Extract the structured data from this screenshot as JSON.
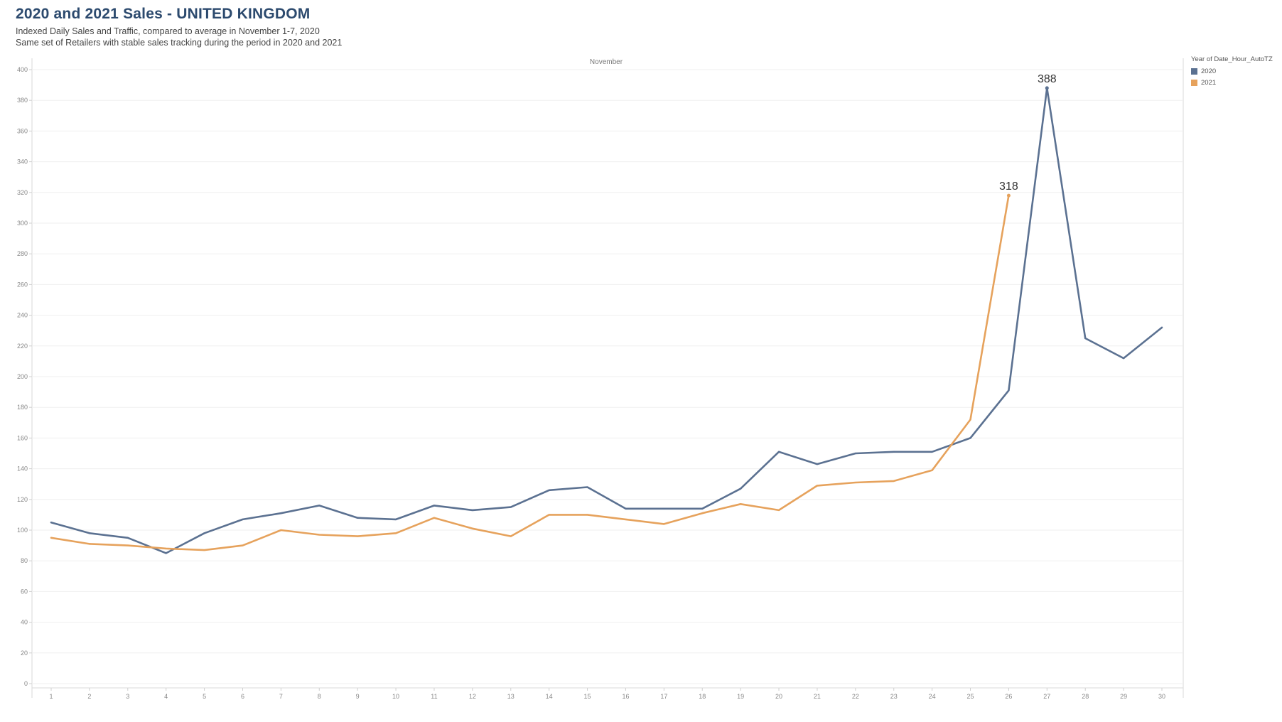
{
  "title": "2020 and 2021 Sales - UNITED KINGDOM",
  "subtitle_1": "Indexed Daily Sales and Traffic, compared to average in November 1-7, 2020",
  "subtitle_2": "Same set of Retailers with stable sales tracking during the period in 2020 and 2021",
  "legend": {
    "title": "Year of Date_Hour_AutoTZ",
    "items": [
      {
        "label": "2020",
        "color": "#5b7191"
      },
      {
        "label": "2021",
        "color": "#e6a25c"
      }
    ]
  },
  "chart_data": {
    "type": "line",
    "title": "2020 and 2021 Sales - UNITED KINGDOM",
    "column_header": "November",
    "xlabel": "",
    "ylabel": "",
    "x": [
      1,
      2,
      3,
      4,
      5,
      6,
      7,
      8,
      9,
      10,
      11,
      12,
      13,
      14,
      15,
      16,
      17,
      18,
      19,
      20,
      21,
      22,
      23,
      24,
      25,
      26,
      27,
      28,
      29,
      30
    ],
    "ylim": [
      0,
      400
    ],
    "yticks": [
      0,
      20,
      40,
      60,
      80,
      100,
      120,
      140,
      160,
      180,
      200,
      220,
      240,
      260,
      280,
      300,
      320,
      340,
      360,
      380,
      400
    ],
    "grid": true,
    "legend_position": "top-right",
    "series": [
      {
        "name": "2020",
        "color": "#5b7191",
        "values": [
          105,
          98,
          95,
          85,
          98,
          107,
          111,
          116,
          108,
          107,
          116,
          113,
          115,
          126,
          128,
          114,
          114,
          114,
          127,
          151,
          143,
          150,
          151,
          151,
          160,
          191,
          388,
          225,
          212,
          232
        ],
        "label_index": 26,
        "label": "388"
      },
      {
        "name": "2021",
        "color": "#e6a25c",
        "values": [
          95,
          91,
          90,
          88,
          87,
          90,
          100,
          97,
          96,
          98,
          108,
          101,
          96,
          110,
          110,
          107,
          104,
          111,
          117,
          113,
          129,
          131,
          132,
          139,
          172,
          318,
          null,
          null,
          null,
          null
        ],
        "label_index": 25,
        "label": "318"
      }
    ]
  }
}
